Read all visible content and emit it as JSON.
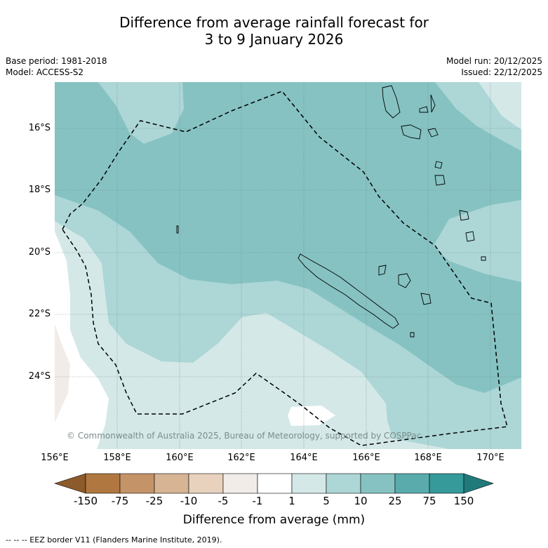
{
  "title": {
    "line1": "Difference from average rainfall forecast for",
    "line2": "3 to 9 January 2026"
  },
  "meta": {
    "base_period": "Base period: 1981-2018",
    "model": "Model: ACCESS-S2",
    "model_run": "Model run: 20/12/2025",
    "issued": "Issued: 22/12/2025"
  },
  "map": {
    "lat_labels": [
      "16°S",
      "18°S",
      "20°S",
      "22°S",
      "24°S"
    ],
    "lon_labels": [
      "156°E",
      "158°E",
      "160°E",
      "162°E",
      "164°E",
      "166°E",
      "168°E",
      "170°E"
    ],
    "credit": "© Commonwealth of Australia 2025, Bureau of Meteorology, supported by COSPPac"
  },
  "colorbar": {
    "ticks": [
      "-150",
      "-75",
      "-25",
      "-10",
      "-5",
      "-1",
      "1",
      "5",
      "10",
      "25",
      "75",
      "150"
    ],
    "colors": [
      "#8c5a2b",
      "#b07840",
      "#c49468",
      "#d6b494",
      "#e8d2be",
      "#f2ece8",
      "#ffffff",
      "#d4e8e8",
      "#add6d6",
      "#86c2c2",
      "#5aacac",
      "#36999a",
      "#217a7a"
    ],
    "title": "Difference from average (mm)"
  },
  "legend": {
    "eez": "--  --  -- EEZ border V11 (Flanders Marine Institute, 2019)."
  }
}
